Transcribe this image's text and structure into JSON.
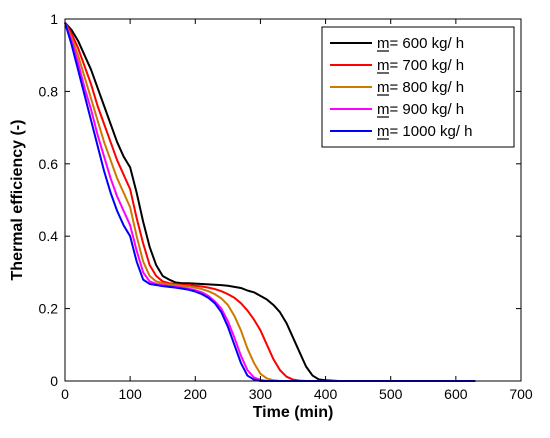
{
  "chart_data": {
    "type": "line",
    "title": "",
    "xlabel": "Time (min)",
    "ylabel": "Thermal efficiency (-)",
    "xlim": [
      0,
      700
    ],
    "ylim": [
      0,
      1
    ],
    "xticks": [
      0,
      100,
      200,
      300,
      400,
      500,
      600,
      700
    ],
    "xtick_labels": [
      "0",
      "100",
      "200",
      "300",
      "400",
      "500",
      "600",
      "700"
    ],
    "yticks": [
      0,
      0.2,
      0.4,
      0.6,
      0.8,
      1
    ],
    "ytick_labels": [
      "0",
      "0.2",
      "0.4",
      "0.6",
      "0.8",
      "1"
    ],
    "grid": false,
    "legend_position": "top-right",
    "series": [
      {
        "name": "m= 600 kg/ h",
        "color": "#000000",
        "x": [
          0,
          10,
          20,
          30,
          40,
          50,
          60,
          70,
          80,
          90,
          100,
          110,
          120,
          130,
          140,
          150,
          160,
          170,
          180,
          190,
          200,
          210,
          220,
          230,
          240,
          250,
          260,
          270,
          280,
          290,
          300,
          310,
          320,
          330,
          340,
          350,
          360,
          370,
          380,
          390,
          400,
          410,
          420,
          430,
          500,
          630
        ],
        "y": [
          0.99,
          0.97,
          0.94,
          0.9,
          0.86,
          0.81,
          0.76,
          0.71,
          0.66,
          0.62,
          0.59,
          0.52,
          0.44,
          0.37,
          0.32,
          0.29,
          0.28,
          0.272,
          0.27,
          0.27,
          0.269,
          0.268,
          0.267,
          0.266,
          0.265,
          0.263,
          0.26,
          0.257,
          0.25,
          0.245,
          0.235,
          0.225,
          0.21,
          0.19,
          0.16,
          0.12,
          0.08,
          0.04,
          0.015,
          0.004,
          0.002,
          0.001,
          0.0,
          0.0,
          0.0,
          0.0
        ]
      },
      {
        "name": "m= 700 kg/ h",
        "color": "#ff0000",
        "x": [
          0,
          10,
          20,
          30,
          40,
          50,
          60,
          70,
          80,
          90,
          100,
          110,
          120,
          130,
          140,
          150,
          160,
          170,
          180,
          190,
          200,
          210,
          220,
          230,
          240,
          250,
          260,
          270,
          280,
          290,
          300,
          310,
          320,
          330,
          340,
          350,
          360,
          370,
          380,
          390,
          630
        ],
        "y": [
          0.99,
          0.96,
          0.92,
          0.87,
          0.82,
          0.76,
          0.71,
          0.66,
          0.61,
          0.57,
          0.53,
          0.45,
          0.38,
          0.32,
          0.29,
          0.275,
          0.27,
          0.268,
          0.266,
          0.265,
          0.263,
          0.261,
          0.258,
          0.254,
          0.248,
          0.24,
          0.23,
          0.215,
          0.195,
          0.17,
          0.14,
          0.1,
          0.06,
          0.03,
          0.012,
          0.004,
          0.001,
          0.0,
          0.0,
          0.0,
          0.0
        ]
      },
      {
        "name": "m= 800 kg/ h",
        "color": "#cc7a00",
        "x": [
          0,
          10,
          20,
          30,
          40,
          50,
          60,
          70,
          80,
          90,
          100,
          110,
          120,
          130,
          140,
          150,
          160,
          170,
          180,
          190,
          200,
          210,
          220,
          230,
          240,
          250,
          260,
          270,
          280,
          290,
          300,
          310,
          320,
          330,
          340,
          630
        ],
        "y": [
          0.99,
          0.95,
          0.9,
          0.84,
          0.78,
          0.72,
          0.66,
          0.61,
          0.56,
          0.52,
          0.48,
          0.4,
          0.33,
          0.29,
          0.275,
          0.27,
          0.267,
          0.265,
          0.263,
          0.261,
          0.258,
          0.254,
          0.248,
          0.24,
          0.228,
          0.21,
          0.18,
          0.14,
          0.09,
          0.05,
          0.02,
          0.007,
          0.002,
          0.0,
          0.0,
          0.0
        ]
      },
      {
        "name": "m= 900 kg/ h",
        "color": "#ff00ff",
        "x": [
          0,
          10,
          20,
          30,
          40,
          50,
          60,
          70,
          80,
          90,
          100,
          110,
          120,
          130,
          140,
          150,
          160,
          170,
          180,
          190,
          200,
          210,
          220,
          230,
          240,
          250,
          260,
          270,
          280,
          290,
          300,
          310,
          630
        ],
        "y": [
          0.99,
          0.94,
          0.88,
          0.81,
          0.75,
          0.68,
          0.62,
          0.56,
          0.51,
          0.47,
          0.43,
          0.36,
          0.3,
          0.275,
          0.268,
          0.265,
          0.262,
          0.26,
          0.258,
          0.255,
          0.251,
          0.245,
          0.235,
          0.22,
          0.2,
          0.165,
          0.12,
          0.07,
          0.03,
          0.01,
          0.003,
          0.0,
          0.0
        ]
      },
      {
        "name": "m= 1000 kg/ h",
        "color": "#0000ff",
        "x": [
          0,
          10,
          20,
          30,
          40,
          50,
          60,
          70,
          80,
          90,
          100,
          110,
          120,
          130,
          140,
          150,
          160,
          170,
          180,
          190,
          200,
          210,
          220,
          230,
          240,
          250,
          260,
          270,
          280,
          290,
          300,
          630
        ],
        "y": [
          0.99,
          0.93,
          0.86,
          0.79,
          0.72,
          0.65,
          0.58,
          0.52,
          0.47,
          0.43,
          0.4,
          0.33,
          0.28,
          0.268,
          0.265,
          0.262,
          0.26,
          0.258,
          0.255,
          0.252,
          0.247,
          0.24,
          0.23,
          0.215,
          0.19,
          0.15,
          0.1,
          0.05,
          0.015,
          0.004,
          0.0,
          0.0
        ]
      }
    ]
  }
}
